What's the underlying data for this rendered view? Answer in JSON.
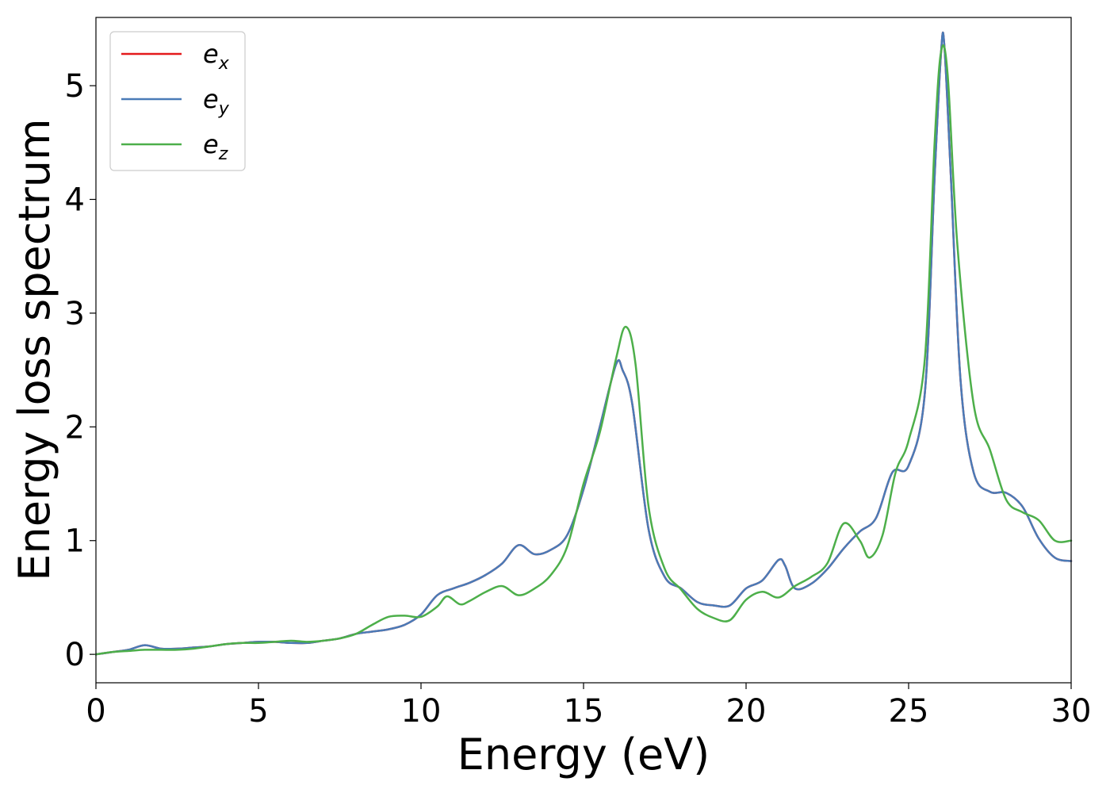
{
  "chart_data": {
    "type": "line",
    "xlabel": "Energy (eV)",
    "ylabel": "Energy loss spectrum",
    "xlim": [
      0,
      30
    ],
    "ylim": [
      -0.25,
      5.6
    ],
    "xticks": [
      0,
      5,
      10,
      15,
      20,
      25,
      30
    ],
    "yticks": [
      0,
      1,
      2,
      3,
      4,
      5
    ],
    "grid": false,
    "legend_position": "top-left",
    "series": [
      {
        "name": "e",
        "subscript": "x",
        "color": "#e41a1c",
        "x": [
          0,
          0.5,
          1.0,
          1.5,
          2.0,
          2.5,
          3.0,
          3.5,
          4.0,
          4.5,
          5.0,
          5.5,
          6.0,
          6.5,
          7.0,
          7.5,
          8.0,
          8.5,
          9.0,
          9.5,
          10.0,
          10.5,
          11.0,
          11.5,
          12.0,
          12.5,
          13.0,
          13.5,
          14.0,
          14.5,
          15.0,
          15.5,
          16.0,
          16.2,
          16.5,
          17.0,
          17.5,
          18.0,
          18.5,
          19.0,
          19.5,
          20.0,
          20.5,
          21.0,
          21.2,
          21.5,
          22.0,
          22.5,
          23.0,
          23.5,
          24.0,
          24.5,
          25.0,
          25.5,
          25.8,
          26.0,
          26.1,
          26.3,
          26.6,
          27.0,
          27.5,
          28.0,
          28.5,
          29.0,
          29.5,
          30.0
        ],
        "y": [
          0.0,
          0.02,
          0.04,
          0.08,
          0.05,
          0.05,
          0.06,
          0.07,
          0.09,
          0.1,
          0.11,
          0.11,
          0.1,
          0.1,
          0.12,
          0.14,
          0.18,
          0.2,
          0.22,
          0.26,
          0.35,
          0.52,
          0.58,
          0.63,
          0.7,
          0.8,
          0.96,
          0.88,
          0.92,
          1.05,
          1.45,
          2.0,
          2.55,
          2.5,
          2.2,
          1.1,
          0.68,
          0.58,
          0.46,
          0.43,
          0.43,
          0.58,
          0.65,
          0.83,
          0.78,
          0.58,
          0.62,
          0.75,
          0.93,
          1.08,
          1.2,
          1.6,
          1.66,
          2.3,
          4.2,
          5.3,
          5.35,
          4.2,
          2.4,
          1.6,
          1.43,
          1.42,
          1.3,
          1.02,
          0.85,
          0.82
        ]
      },
      {
        "name": "e",
        "subscript": "y",
        "color": "#4a7bb7",
        "x": [
          0,
          0.5,
          1.0,
          1.5,
          2.0,
          2.5,
          3.0,
          3.5,
          4.0,
          4.5,
          5.0,
          5.5,
          6.0,
          6.5,
          7.0,
          7.5,
          8.0,
          8.5,
          9.0,
          9.5,
          10.0,
          10.5,
          11.0,
          11.5,
          12.0,
          12.5,
          13.0,
          13.5,
          14.0,
          14.5,
          15.0,
          15.5,
          16.0,
          16.2,
          16.5,
          17.0,
          17.5,
          18.0,
          18.5,
          19.0,
          19.5,
          20.0,
          20.5,
          21.0,
          21.2,
          21.5,
          22.0,
          22.5,
          23.0,
          23.5,
          24.0,
          24.5,
          25.0,
          25.5,
          25.8,
          26.0,
          26.1,
          26.3,
          26.6,
          27.0,
          27.5,
          28.0,
          28.5,
          29.0,
          29.5,
          30.0
        ],
        "y": [
          0.0,
          0.02,
          0.04,
          0.08,
          0.05,
          0.05,
          0.06,
          0.07,
          0.09,
          0.1,
          0.11,
          0.11,
          0.1,
          0.1,
          0.12,
          0.14,
          0.18,
          0.2,
          0.22,
          0.26,
          0.35,
          0.52,
          0.58,
          0.63,
          0.7,
          0.8,
          0.96,
          0.88,
          0.92,
          1.05,
          1.45,
          2.0,
          2.55,
          2.5,
          2.2,
          1.1,
          0.68,
          0.58,
          0.46,
          0.43,
          0.43,
          0.58,
          0.65,
          0.83,
          0.78,
          0.58,
          0.62,
          0.75,
          0.93,
          1.08,
          1.2,
          1.6,
          1.66,
          2.3,
          4.2,
          5.3,
          5.35,
          4.2,
          2.4,
          1.6,
          1.43,
          1.42,
          1.3,
          1.02,
          0.85,
          0.82
        ]
      },
      {
        "name": "e",
        "subscript": "z",
        "color": "#4daf4a",
        "x": [
          0,
          0.5,
          1.0,
          1.5,
          2.0,
          2.5,
          3.0,
          3.5,
          4.0,
          4.5,
          5.0,
          5.5,
          6.0,
          6.5,
          7.0,
          7.5,
          8.0,
          8.5,
          9.0,
          9.5,
          10.0,
          10.5,
          10.8,
          11.2,
          11.5,
          12.0,
          12.5,
          13.0,
          13.5,
          14.0,
          14.5,
          15.0,
          15.5,
          16.0,
          16.3,
          16.6,
          17.0,
          17.5,
          18.0,
          18.5,
          19.0,
          19.5,
          20.0,
          20.5,
          21.0,
          21.5,
          22.0,
          22.5,
          23.0,
          23.5,
          23.8,
          24.2,
          24.6,
          25.0,
          25.5,
          25.8,
          26.0,
          26.2,
          26.5,
          27.0,
          27.5,
          28.0,
          28.5,
          29.0,
          29.5,
          30.0
        ],
        "y": [
          0.0,
          0.02,
          0.03,
          0.04,
          0.04,
          0.04,
          0.05,
          0.07,
          0.09,
          0.1,
          0.1,
          0.11,
          0.12,
          0.11,
          0.12,
          0.14,
          0.18,
          0.26,
          0.33,
          0.34,
          0.33,
          0.42,
          0.51,
          0.44,
          0.47,
          0.55,
          0.6,
          0.52,
          0.58,
          0.7,
          0.95,
          1.5,
          1.95,
          2.6,
          2.88,
          2.55,
          1.3,
          0.75,
          0.57,
          0.4,
          0.32,
          0.3,
          0.48,
          0.55,
          0.5,
          0.6,
          0.68,
          0.8,
          1.15,
          1.0,
          0.85,
          1.05,
          1.6,
          1.88,
          2.6,
          4.5,
          5.3,
          5.1,
          3.6,
          2.2,
          1.8,
          1.36,
          1.25,
          1.18,
          1.0,
          1.0
        ]
      }
    ]
  }
}
